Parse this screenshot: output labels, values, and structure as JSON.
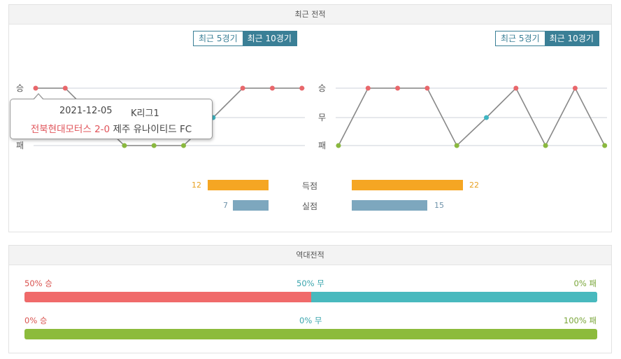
{
  "recent": {
    "title": "최근 전적",
    "toggle_left": {
      "btn5": "최근 5경기",
      "btn10": "최근 10경기"
    },
    "toggle_right": {
      "btn5": "최근 5경기",
      "btn10": "최근 10경기"
    },
    "y_labels": {
      "win": "승",
      "draw": "무",
      "loss": "패"
    },
    "left_results": [
      "W",
      "W",
      "D",
      "L",
      "L",
      "L",
      "D",
      "W",
      "W",
      "W"
    ],
    "right_results": [
      "L",
      "W",
      "W",
      "W",
      "L",
      "D",
      "W",
      "L",
      "W",
      "L"
    ],
    "tooltip": {
      "date": "2021-12-05",
      "league": "K리그1",
      "home": "전북현대모터스",
      "score": "2-0",
      "away": "제주 유나이티드 FC"
    },
    "stats": [
      {
        "label": "득점",
        "left": "12",
        "right": "22",
        "left_val": 12,
        "right_val": 22
      },
      {
        "label": "실점",
        "left": "7",
        "right": "15",
        "left_val": 7,
        "right_val": 15
      }
    ],
    "colors": {
      "win": "#e8676b",
      "draw": "#3fb5c2",
      "loss": "#8ab83f",
      "line": "#888888",
      "goals": "#f5a623",
      "conceded": "#7da7be"
    }
  },
  "h2h": {
    "title": "역대전적",
    "rows": [
      {
        "win_label": "50% 승",
        "draw_label": "50% 무",
        "loss_label": "0% 패",
        "win": 50,
        "draw": 50,
        "loss": 0
      },
      {
        "win_label": "0% 승",
        "draw_label": "0% 무",
        "loss_label": "100% 패",
        "win": 0,
        "draw": 0,
        "loss": 100
      }
    ],
    "colors": {
      "win": "#f06a6a",
      "draw": "#48b9be",
      "loss": "#8cbb3c",
      "win_text": "#d9534f",
      "draw_text": "#3aa5ad",
      "loss_text": "#7aa63a"
    }
  }
}
